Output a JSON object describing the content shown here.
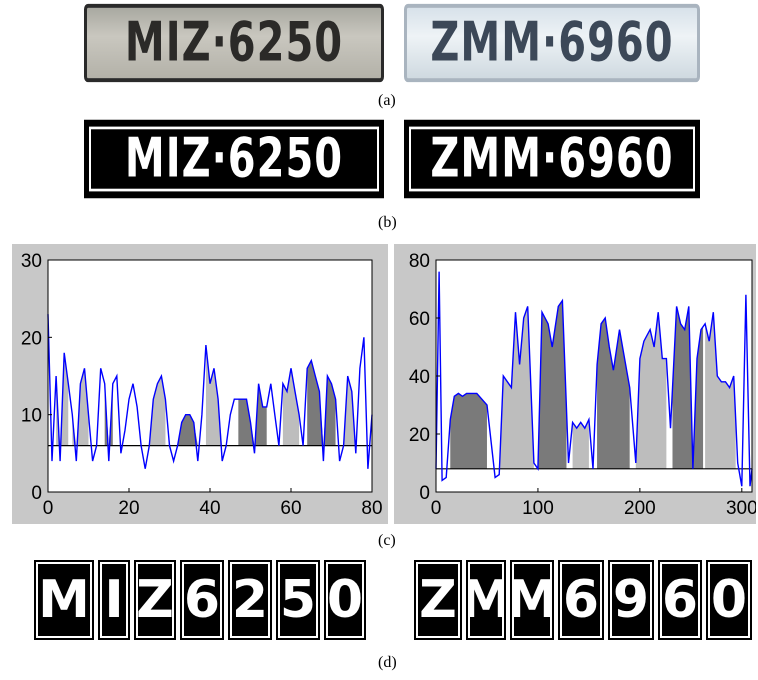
{
  "panel_a": {
    "plate_left": "MIZ·6250",
    "plate_right": "ZMM·6960",
    "caption": "(a)"
  },
  "panel_b": {
    "plate_left": "MIZ·6250",
    "plate_right": "ZMM·6960",
    "caption": "(b)"
  },
  "panel_c": {
    "caption": "(c)"
  },
  "panel_d": {
    "chars_left": [
      "M",
      "I",
      "Z",
      "6",
      "2",
      "5",
      "0"
    ],
    "chars_right": [
      "Z",
      "M",
      "M",
      "6",
      "9",
      "6",
      "0"
    ],
    "caption": "(d)"
  },
  "colors": {
    "line": "#0000ff",
    "fill_light": "#bdbdbd",
    "fill_dark": "#7a7a7a",
    "threshold": "#000000",
    "chart_bg": "#c8c8c8"
  },
  "chart_data": [
    {
      "type": "area",
      "xlim": [
        0,
        80
      ],
      "ylim": [
        0,
        30
      ],
      "xticks": [
        0,
        20,
        40,
        60,
        80
      ],
      "yticks": [
        0,
        10,
        20,
        30
      ],
      "threshold": 6,
      "grid": false,
      "series": [
        {
          "x": [
            0,
            1,
            2,
            3,
            4,
            5,
            6,
            7,
            8,
            9,
            10,
            11,
            12,
            13,
            14,
            15,
            16,
            17,
            18,
            19,
            20,
            21,
            22,
            23,
            24,
            25,
            26,
            27,
            28,
            29,
            30,
            31,
            32,
            33,
            34,
            35,
            36,
            37,
            38,
            39,
            40,
            41,
            42,
            43,
            44,
            45,
            46,
            47,
            48,
            49,
            50,
            51,
            52,
            53,
            54,
            55,
            56,
            57,
            58,
            59,
            60,
            61,
            62,
            63,
            64,
            65,
            66,
            67,
            68,
            69,
            70,
            71,
            72,
            73,
            74,
            75,
            76,
            77,
            78,
            79,
            80
          ],
          "y": [
            23,
            4,
            15,
            4,
            18,
            14,
            10,
            4,
            14,
            16,
            10,
            4,
            6,
            16,
            14,
            4,
            14,
            15,
            5,
            8,
            12,
            14,
            11,
            6,
            3,
            6,
            12,
            14,
            15,
            12,
            6,
            4,
            6,
            9,
            10,
            10,
            9,
            4,
            10,
            19,
            14,
            16,
            12,
            4,
            6,
            10,
            12,
            12,
            12,
            12,
            9,
            5,
            14,
            11,
            11,
            14,
            10,
            6,
            14,
            13,
            16,
            13,
            10,
            6,
            16,
            17,
            15,
            13,
            4,
            15,
            14,
            12,
            4,
            6,
            15,
            13,
            5,
            16,
            20,
            3,
            10
          ],
          "fill_segments": [
            {
              "range": [
                2,
                5
              ],
              "shade": "light"
            },
            {
              "range": [
                6,
                10
              ],
              "shade": "light"
            },
            {
              "range": [
                14,
                16
              ],
              "shade": "dark"
            },
            {
              "range": [
                23,
                29
              ],
              "shade": "light"
            },
            {
              "range": [
                31,
                37
              ],
              "shade": "dark"
            },
            {
              "range": [
                39,
                43
              ],
              "shade": "light"
            },
            {
              "range": [
                47,
                54
              ],
              "shade": "dark"
            },
            {
              "range": [
                58,
                62
              ],
              "shade": "light"
            },
            {
              "range": [
                64,
                71
              ],
              "shade": "dark"
            },
            {
              "range": [
                72,
                76
              ],
              "shade": "light"
            }
          ]
        }
      ]
    },
    {
      "type": "area",
      "xlim": [
        0,
        310
      ],
      "ylim": [
        0,
        80
      ],
      "xticks": [
        0,
        100,
        200,
        300
      ],
      "yticks": [
        0,
        20,
        40,
        60,
        80
      ],
      "threshold": 8,
      "grid": false,
      "series": [
        {
          "x": [
            0,
            3,
            6,
            10,
            14,
            18,
            22,
            26,
            30,
            40,
            50,
            58,
            62,
            66,
            70,
            74,
            78,
            82,
            86,
            90,
            96,
            100,
            104,
            110,
            114,
            120,
            124,
            130,
            134,
            138,
            142,
            146,
            150,
            154,
            158,
            162,
            166,
            170,
            174,
            180,
            186,
            190,
            196,
            200,
            204,
            210,
            214,
            218,
            222,
            226,
            230,
            236,
            240,
            244,
            248,
            252,
            256,
            260,
            264,
            268,
            272,
            276,
            280,
            284,
            288,
            292,
            296,
            300,
            304,
            308,
            310
          ],
          "y": [
            8,
            76,
            4,
            5,
            25,
            33,
            34,
            33,
            34,
            34,
            30,
            5,
            6,
            40,
            38,
            36,
            62,
            44,
            60,
            64,
            10,
            8,
            62,
            58,
            50,
            64,
            66,
            10,
            24,
            22,
            24,
            22,
            25,
            8,
            44,
            58,
            60,
            50,
            42,
            56,
            44,
            36,
            10,
            46,
            52,
            56,
            50,
            62,
            46,
            46,
            22,
            64,
            58,
            56,
            64,
            8,
            46,
            56,
            58,
            52,
            62,
            40,
            38,
            38,
            36,
            40,
            10,
            2,
            68,
            2,
            8
          ],
          "fill_segments": [
            {
              "range": [
                14,
                50
              ],
              "shade": "dark"
            },
            {
              "range": [
                62,
                96
              ],
              "shade": "light"
            },
            {
              "range": [
                100,
                128
              ],
              "shade": "dark"
            },
            {
              "range": [
                134,
                150
              ],
              "shade": "light"
            },
            {
              "range": [
                158,
                190
              ],
              "shade": "dark"
            },
            {
              "range": [
                196,
                226
              ],
              "shade": "light"
            },
            {
              "range": [
                232,
                262
              ],
              "shade": "dark"
            },
            {
              "range": [
                264,
                294
              ],
              "shade": "light"
            }
          ]
        }
      ]
    }
  ]
}
